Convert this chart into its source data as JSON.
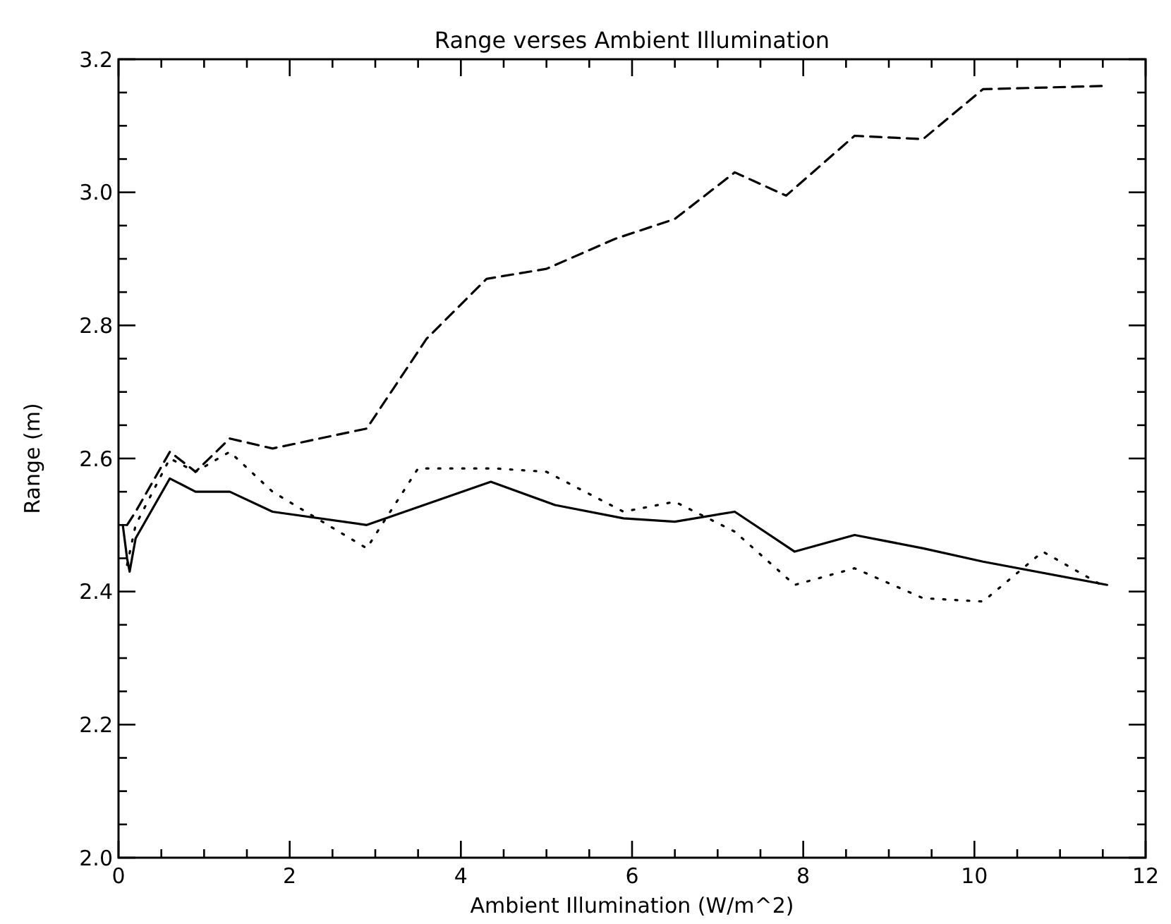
{
  "chart_data": {
    "type": "line",
    "title": "Range verses Ambient Illumination",
    "xlabel": "Ambient Illumination (W/m^2)",
    "ylabel": "Range (m)",
    "xlim": [
      0,
      12
    ],
    "ylim": [
      2.0,
      3.2
    ],
    "xticks": [
      0,
      {
        "value": 0.5,
        "label": null
      },
      2,
      {
        "value": 1,
        "label": null
      },
      {
        "value": 1.5,
        "label": null
      },
      {
        "value": 2.5,
        "label": null
      },
      {
        "value": 3,
        "label": null
      },
      {
        "value": 3.5,
        "label": null
      },
      4,
      {
        "value": 4.5,
        "label": null
      },
      {
        "value": 5,
        "label": null
      },
      {
        "value": 5.5,
        "label": null
      },
      6,
      {
        "value": 6.5,
        "label": null
      },
      {
        "value": 7,
        "label": null
      },
      {
        "value": 7.5,
        "label": null
      },
      8,
      {
        "value": 8.5,
        "label": null
      },
      {
        "value": 9,
        "label": null
      },
      {
        "value": 9.5,
        "label": null
      },
      10,
      {
        "value": 10.5,
        "label": null
      },
      {
        "value": 11,
        "label": null
      },
      {
        "value": 11.5,
        "label": null
      },
      12
    ],
    "yticks": [
      {
        "value": 2,
        "label": "2.0"
      },
      {
        "value": 2.05,
        "label": null
      },
      {
        "value": 2.1,
        "label": null
      },
      {
        "value": 2.15,
        "label": null
      },
      2.2,
      {
        "value": 2.25,
        "label": null
      },
      {
        "value": 2.3,
        "label": null
      },
      {
        "value": 2.35,
        "label": null
      },
      2.4,
      {
        "value": 2.45,
        "label": null
      },
      {
        "value": 2.5,
        "label": null
      },
      {
        "value": 2.55,
        "label": null
      },
      2.6,
      {
        "value": 2.65,
        "label": null
      },
      {
        "value": 2.7,
        "label": null
      },
      {
        "value": 2.75,
        "label": null
      },
      2.8,
      {
        "value": 2.85,
        "label": null
      },
      {
        "value": 2.9,
        "label": null
      },
      {
        "value": 2.95,
        "label": null
      },
      {
        "value": 3,
        "label": "3.0"
      },
      {
        "value": 3.05,
        "label": null
      },
      {
        "value": 3.1,
        "label": null
      },
      {
        "value": 3.15,
        "label": null
      },
      3.2
    ],
    "grid": false,
    "series": [
      {
        "color": "#000000",
        "line_style": "solid",
        "x": [
          0.05,
          0.1,
          0.13,
          0.2,
          0.6,
          0.9,
          1.3,
          1.8,
          2.9,
          4.35,
          5.1,
          5.9,
          6.5,
          7.2,
          7.9,
          8.6,
          9.4,
          10.1,
          11.55
        ],
        "values": [
          2.5,
          2.45,
          2.43,
          2.48,
          2.57,
          2.55,
          2.55,
          2.52,
          2.5,
          2.565,
          2.53,
          2.51,
          2.505,
          2.52,
          2.46,
          2.485,
          2.465,
          2.445,
          2.41
        ]
      },
      {
        "color": "#000000",
        "line_style": "dotted",
        "x": [
          0.1,
          0.2,
          0.6,
          0.9,
          1.3,
          1.8,
          2.9,
          3.5,
          4.4,
          5.0,
          5.9,
          6.5,
          7.2,
          7.9,
          8.6,
          9.4,
          10.1,
          10.8,
          11.55
        ],
        "values": [
          2.44,
          2.5,
          2.6,
          2.58,
          2.61,
          2.55,
          2.465,
          2.585,
          2.585,
          2.58,
          2.52,
          2.535,
          2.49,
          2.41,
          2.435,
          2.39,
          2.385,
          2.46,
          2.405
        ]
      },
      {
        "color": "#000000",
        "line_style": "dashed",
        "x": [
          0.1,
          0.2,
          0.6,
          0.9,
          1.3,
          1.8,
          2.9,
          3.6,
          4.3,
          5.0,
          5.8,
          6.5,
          7.2,
          7.8,
          8.6,
          9.4,
          10.1,
          11.55
        ],
        "values": [
          2.5,
          2.52,
          2.61,
          2.58,
          2.63,
          2.615,
          2.645,
          2.78,
          2.87,
          2.885,
          2.93,
          2.96,
          3.03,
          2.995,
          3.085,
          3.08,
          3.155,
          3.16
        ]
      }
    ]
  }
}
